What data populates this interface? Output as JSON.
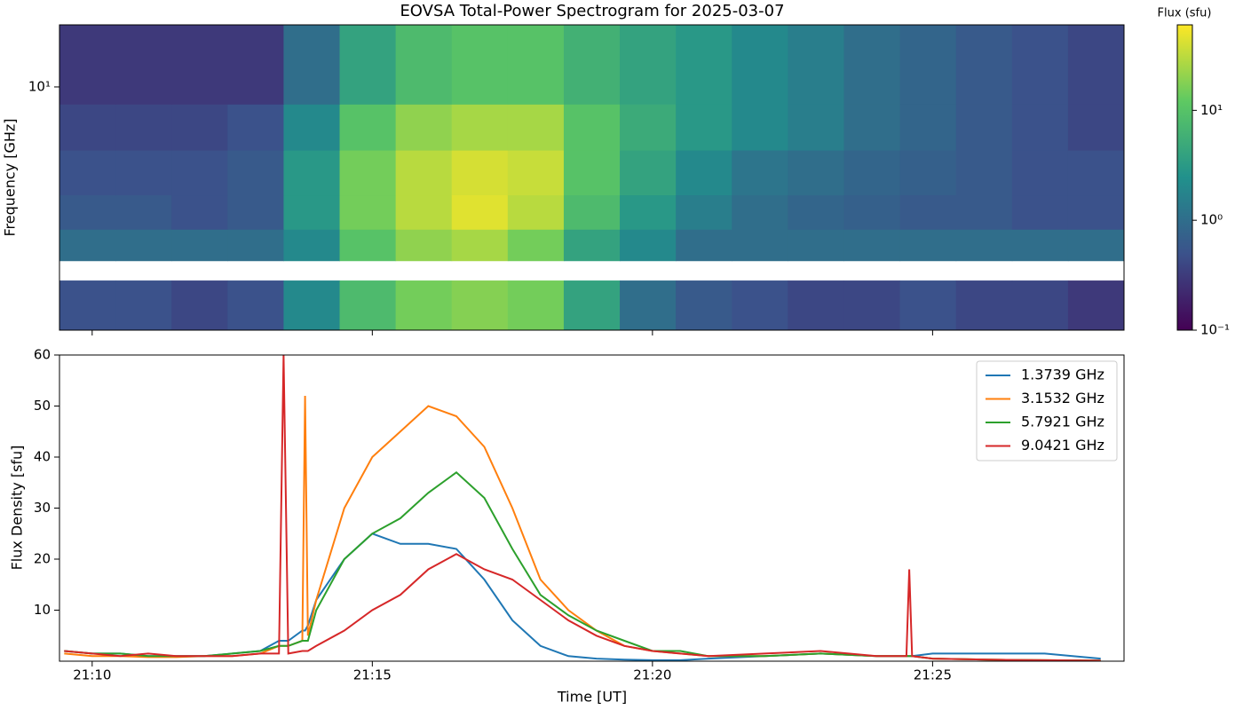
{
  "chart_data": [
    {
      "type": "heatmap",
      "title": "EOVSA Total-Power Spectrogram for 2025-03-07",
      "y_label": "Frequency [GHz]",
      "colorbar_label": "Flux (sfu)",
      "log_y": true,
      "log_color": true,
      "colormap": "viridis",
      "xlim": [
        "21:09:25",
        "21:28:25"
      ],
      "ylim": [
        1.0,
        18
      ],
      "yticks": [
        {
          "value": 10,
          "label": "10¹"
        }
      ],
      "clim": [
        0.1,
        60
      ],
      "cticks": [
        {
          "value": 0.1,
          "label": "10⁻¹"
        },
        {
          "value": 1,
          "label": "10⁰"
        },
        {
          "value": 10,
          "label": "10¹"
        }
      ],
      "xbins": [
        "21:09:25",
        "21:10:25",
        "21:11:25",
        "21:12:25",
        "21:13:25",
        "21:14:25",
        "21:15:25",
        "21:16:25",
        "21:17:25",
        "21:18:25",
        "21:19:25",
        "21:20:25",
        "21:21:25",
        "21:22:25",
        "21:23:25",
        "21:24:25",
        "21:25:25",
        "21:26:25",
        "21:27:25",
        "21:28:25"
      ],
      "ybins": [
        1.0,
        1.6,
        1.93,
        2.6,
        3.6,
        5.5,
        8.5,
        18
      ],
      "values": [
        [
          0.5,
          0.5,
          0.4,
          0.5,
          2,
          8,
          15,
          18,
          15,
          4,
          1,
          0.6,
          0.5,
          0.4,
          0.4,
          0.5,
          0.4,
          0.4,
          0.3
        ],
        [
          null,
          null,
          null,
          null,
          null,
          null,
          null,
          null,
          null,
          null,
          null,
          null,
          null,
          null,
          null,
          null,
          null,
          null,
          null
        ],
        [
          1,
          1,
          1,
          1,
          2,
          10,
          20,
          25,
          15,
          4,
          2,
          1,
          1,
          1,
          1,
          1,
          1,
          1,
          1
        ],
        [
          0.6,
          0.6,
          0.5,
          0.6,
          3,
          15,
          30,
          45,
          30,
          8,
          3,
          1.5,
          1,
          0.8,
          0.7,
          0.6,
          0.6,
          0.5,
          0.5
        ],
        [
          0.5,
          0.5,
          0.5,
          0.6,
          3,
          15,
          30,
          40,
          35,
          10,
          4,
          2,
          1.2,
          1,
          0.8,
          0.7,
          0.6,
          0.5,
          0.5
        ],
        [
          0.4,
          0.4,
          0.4,
          0.5,
          2,
          10,
          20,
          25,
          25,
          10,
          5,
          3,
          2,
          1.5,
          1,
          0.8,
          0.6,
          0.5,
          0.4
        ],
        [
          0.3,
          0.3,
          0.3,
          0.3,
          1,
          4,
          8,
          10,
          10,
          6,
          4,
          3,
          2,
          1.5,
          1,
          0.8,
          0.6,
          0.5,
          0.4
        ]
      ]
    },
    {
      "type": "line",
      "x_label": "Time [UT]",
      "y_label": "Flux Density [sfu]",
      "legend": "upper right",
      "xlim": [
        "21:09:25",
        "21:28:25"
      ],
      "xticks": [
        "21:10",
        "21:15",
        "21:20",
        "21:25"
      ],
      "ylim": [
        0,
        60
      ],
      "yticks": [
        10,
        20,
        30,
        40,
        50,
        60
      ],
      "x": [
        "21:09:30",
        "21:10:00",
        "21:10:30",
        "21:11:00",
        "21:11:30",
        "21:12:00",
        "21:12:30",
        "21:13:00",
        "21:13:20",
        "21:13:25",
        "21:13:30",
        "21:13:45",
        "21:13:48",
        "21:13:51",
        "21:14:00",
        "21:14:30",
        "21:15:00",
        "21:15:30",
        "21:16:00",
        "21:16:30",
        "21:17:00",
        "21:17:30",
        "21:18:00",
        "21:18:30",
        "21:19:00",
        "21:19:30",
        "21:20:00",
        "21:20:30",
        "21:21:00",
        "21:22:00",
        "21:23:00",
        "21:24:00",
        "21:24:32",
        "21:24:35",
        "21:24:38",
        "21:25:00",
        "21:26:00",
        "21:27:00",
        "21:28:00"
      ],
      "series": [
        {
          "name": "1.3739 GHz",
          "color": "#1f77b4",
          "values": [
            2,
            1.5,
            1.5,
            1,
            1,
            1,
            1.5,
            2,
            4,
            4,
            4,
            6,
            6,
            7,
            12,
            20,
            25,
            23,
            23,
            22,
            16,
            8,
            3,
            1,
            0.5,
            0.3,
            0.2,
            0.2,
            0.5,
            1,
            1.5,
            1,
            1,
            1,
            1,
            1.5,
            1.5,
            1.5,
            0.5
          ]
        },
        {
          "name": "3.1532 GHz",
          "color": "#ff7f0e",
          "values": [
            1.5,
            1,
            1,
            0.8,
            0.8,
            1,
            1,
            1.5,
            3,
            3,
            3,
            4,
            52,
            5,
            12,
            30,
            40,
            45,
            50,
            48,
            42,
            30,
            16,
            10,
            6,
            3,
            2,
            1.5,
            1,
            1,
            1.5,
            1,
            1,
            1,
            1,
            0.5,
            0.3,
            0.2,
            0.1
          ]
        },
        {
          "name": "5.7921 GHz",
          "color": "#2ca02c",
          "values": [
            2,
            1.5,
            1.5,
            1,
            1,
            1,
            1.5,
            2,
            3,
            3,
            3,
            4,
            4,
            4,
            10,
            20,
            25,
            28,
            33,
            37,
            32,
            22,
            13,
            9,
            6,
            4,
            2,
            2,
            1,
            1,
            1.5,
            1,
            1,
            1,
            1,
            0.5,
            0.3,
            0.2,
            0.1
          ]
        },
        {
          "name": "9.0421 GHz",
          "color": "#d62728",
          "values": [
            2,
            1.5,
            1,
            1.5,
            1,
            1,
            1,
            1.5,
            1.5,
            60,
            1.5,
            2,
            2,
            2,
            3,
            6,
            10,
            13,
            18,
            21,
            18,
            16,
            12,
            8,
            5,
            3,
            2,
            1.5,
            1,
            1.5,
            2,
            1,
            1,
            18,
            1,
            0.5,
            0.3,
            0.2,
            0.1
          ]
        }
      ]
    }
  ]
}
